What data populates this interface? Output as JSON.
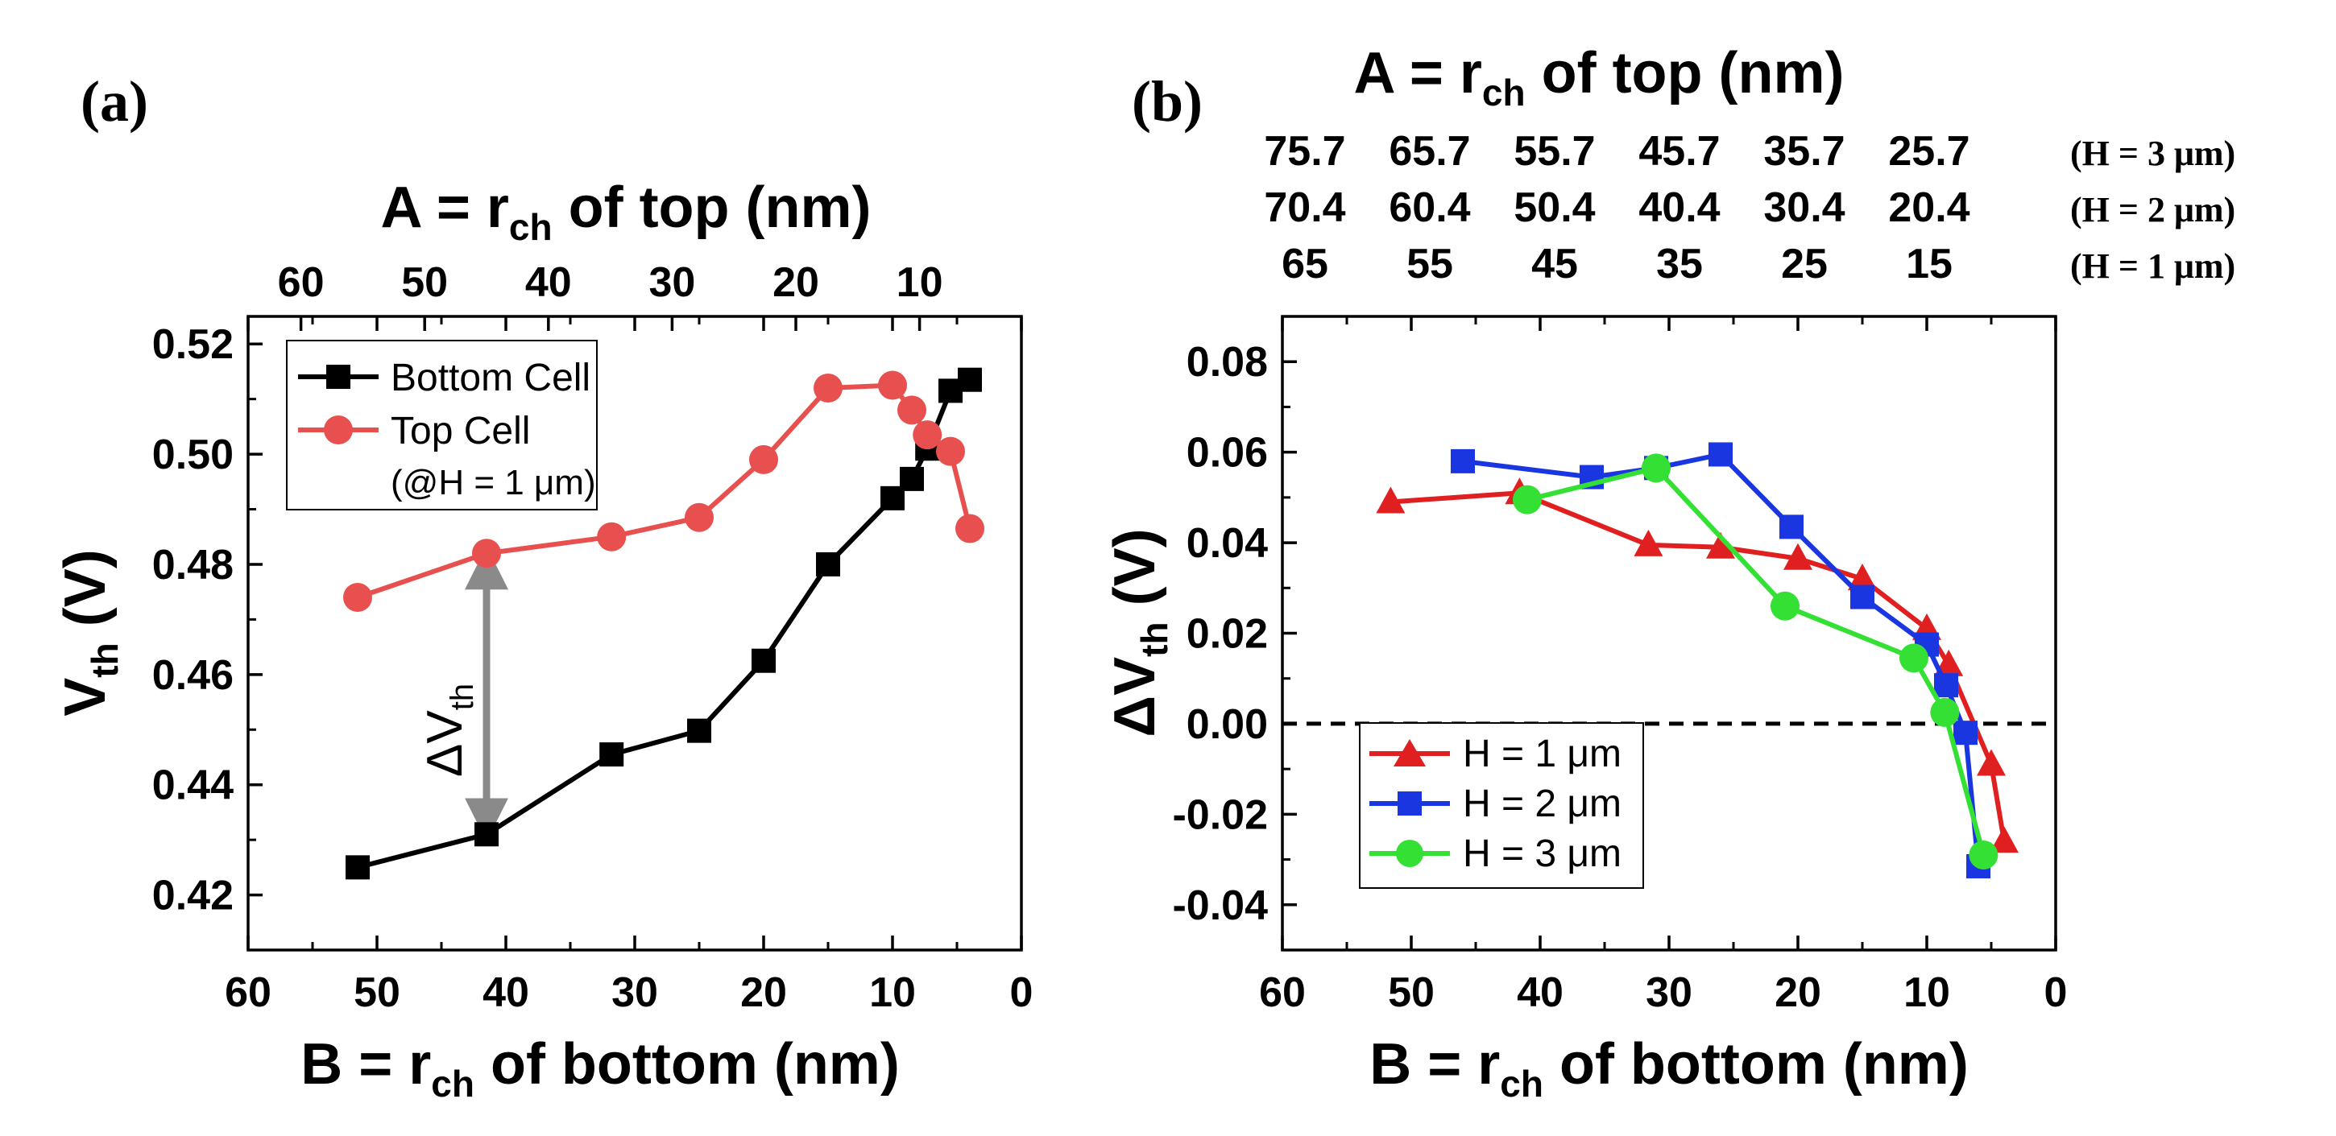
{
  "panels": {
    "a": {
      "label": "(a)",
      "top_title": "A = r",
      "top_title_sub": "ch",
      "top_title_end": " of top (nm)",
      "xlabel": "B = r",
      "xlabel_sub": "ch",
      "xlabel_end": " of bottom (nm)",
      "ylabel": "V",
      "ylabel_sub": "th",
      "ylabel_end": " (V)",
      "annotation": "ΔV",
      "annotation_sub": "th",
      "legend_note": "(@H = 1 μm)"
    },
    "b": {
      "label": "(b)",
      "top_title": "A = r",
      "top_title_sub": "ch",
      "top_title_end": " of top (nm)",
      "xlabel": "B = r",
      "xlabel_sub": "ch",
      "xlabel_end": " of bottom (nm)",
      "ylabel": "ΔV",
      "ylabel_sub": "th",
      "ylabel_end": " (V)",
      "top_rows": [
        {
          "label": "(H = 3 μm)",
          "ticks": [
            "75.7",
            "65.7",
            "55.7",
            "45.7",
            "35.7",
            "25.7"
          ]
        },
        {
          "label": "(H = 2 μm)",
          "ticks": [
            "70.4",
            "60.4",
            "50.4",
            "40.4",
            "30.4",
            "20.4"
          ]
        },
        {
          "label": "(H = 1 μm)",
          "ticks": [
            "65",
            "55",
            "45",
            "35",
            "25",
            "15"
          ]
        }
      ]
    }
  },
  "chart_data": [
    {
      "type": "line",
      "title": "A = rch of top (nm)",
      "xlabel": "B = rch of bottom (nm)",
      "ylabel": "Vth (V)",
      "xlim": [
        60,
        0
      ],
      "ylim": [
        0.41,
        0.525
      ],
      "xticks": [
        "60",
        "50",
        "40",
        "30",
        "20",
        "10",
        "0"
      ],
      "yticks": [
        "0.42",
        "0.44",
        "0.46",
        "0.48",
        "0.50",
        "0.52"
      ],
      "top_axis_ticks": [
        "60",
        "50",
        "40",
        "30",
        "20",
        "10"
      ],
      "legend_position": "top-left",
      "series": [
        {
          "name": "Bottom Cell",
          "color": "#000000",
          "marker": "square",
          "x": [
            51.5,
            41.5,
            31.8,
            25,
            20,
            15,
            10,
            8.5,
            7.3,
            5.5,
            4
          ],
          "y": [
            0.425,
            0.431,
            0.4455,
            0.4498,
            0.4625,
            0.48,
            0.492,
            0.4955,
            0.501,
            0.5115,
            0.5135
          ]
        },
        {
          "name": "Top Cell",
          "color": "#e8504f",
          "marker": "circle",
          "x": [
            51.5,
            41.5,
            31.8,
            25,
            20,
            15,
            10,
            8.5,
            7.3,
            5.5,
            4
          ],
          "y": [
            0.474,
            0.482,
            0.485,
            0.4885,
            0.499,
            0.512,
            0.5125,
            0.508,
            0.5035,
            0.5005,
            0.4865
          ]
        }
      ]
    },
    {
      "type": "line",
      "title": "A = rch of top (nm)",
      "xlabel": "B = rch of bottom (nm)",
      "ylabel": "ΔVth (V)",
      "xlim": [
        60,
        0
      ],
      "ylim": [
        -0.05,
        0.09
      ],
      "xticks": [
        "60",
        "50",
        "40",
        "30",
        "20",
        "10",
        "0"
      ],
      "yticks": [
        "-0.04",
        "-0.02",
        "0.00",
        "0.02",
        "0.04",
        "0.06",
        "0.08"
      ],
      "reference_line_y": 0,
      "legend_position": "bottom-left",
      "series": [
        {
          "name": "H = 1 μm",
          "color": "#e02020",
          "marker": "triangle",
          "x": [
            51.6,
            41.6,
            31.6,
            26,
            20,
            15,
            10,
            8.3,
            5,
            4
          ],
          "y": [
            0.049,
            0.051,
            0.0395,
            0.039,
            0.0365,
            0.032,
            0.021,
            0.013,
            -0.009,
            -0.026
          ]
        },
        {
          "name": "H = 2 μm",
          "color": "#1a36e0",
          "marker": "square",
          "x": [
            46,
            36,
            31,
            26,
            20.5,
            15,
            10,
            8.5,
            7,
            6
          ],
          "y": [
            0.058,
            0.0545,
            0.0565,
            0.0595,
            0.0435,
            0.028,
            0.0175,
            0.0085,
            -0.002,
            -0.0315
          ]
        },
        {
          "name": "H = 3 μm",
          "color": "#33e033",
          "marker": "circle",
          "x": [
            41,
            31,
            21,
            11,
            8.6,
            5.6
          ],
          "y": [
            0.0495,
            0.0565,
            0.026,
            0.0145,
            0.0025,
            -0.029
          ]
        }
      ]
    }
  ]
}
